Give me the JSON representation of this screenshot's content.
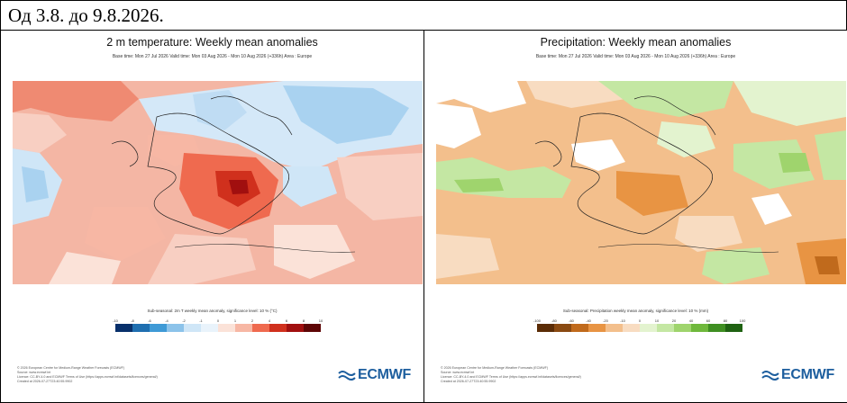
{
  "header": {
    "title": "Од 3.8. до 9.8.2026."
  },
  "panels": [
    {
      "title": "2 m temperature: Weekly mean anomalies",
      "subtitle": "Base time: Mon 27 Jul 2026 Valid time: Mon 03 Aug 2026 - Mon 10 Aug 2026 (+336h) Area : Europe",
      "colorbar_label": "Sub-seasonal: 2m T weekly mean anomaly, significance level: 10 % (°C)",
      "ticks": [
        "-10",
        "-8",
        "-6",
        "-4",
        "-2",
        "-1",
        "0",
        "1",
        "2",
        "4",
        "6",
        "8",
        "10"
      ],
      "colors": [
        "#08306b",
        "#1f6fb0",
        "#3f9ad6",
        "#8cc3ea",
        "#cfe6f7",
        "#e9f3fb",
        "#fbe2d8",
        "#f7b7a4",
        "#ef6a4f",
        "#d0301d",
        "#a10f0f",
        "#5e0606"
      ],
      "footer": [
        "© 2026 European Centre for Medium-Range Weather Forecasts (ECMWF)",
        "Source: www.ecmwf.int",
        "Licence: CC-BY-4.0 and ECMWF Terms of Use (https://apps.ecmwf.int/datasets/licences/general/)",
        "Created at 2026-07-27T23:40:55.9902"
      ],
      "logo": "ECMWF"
    },
    {
      "title": "Precipitation: Weekly mean anomalies",
      "subtitle": "Base time: Mon 27 Jul 2026 Valid time: Mon 03 Aug 2026 - Mon 10 Aug 2026 (+336h) Area : Europe",
      "colorbar_label": "Sub-seasonal: Precipitation weekly mean anomaly, significance level: 10 % (mm)",
      "ticks": [
        "-100",
        "-80",
        "-60",
        "-40",
        "-20",
        "-10",
        "0",
        "10",
        "20",
        "40",
        "60",
        "80",
        "100"
      ],
      "colors": [
        "#5b2c06",
        "#8a4a12",
        "#c06a1c",
        "#e89443",
        "#f3bf8c",
        "#f8dcc1",
        "#e3f3cf",
        "#c4e7a3",
        "#9fd46d",
        "#6fb83c",
        "#3f8f22",
        "#1f6212"
      ],
      "footer": [
        "© 2026 European Centre for Medium-Range Weather Forecasts (ECMWF)",
        "Source: www.ecmwf.int",
        "Licence: CC-BY-4.0 and ECMWF Terms of Use (https://apps.ecmwf.int/datasets/licences/general/)",
        "Created at 2026-07-27T23:40:55.9902"
      ],
      "logo": "ECMWF"
    }
  ]
}
